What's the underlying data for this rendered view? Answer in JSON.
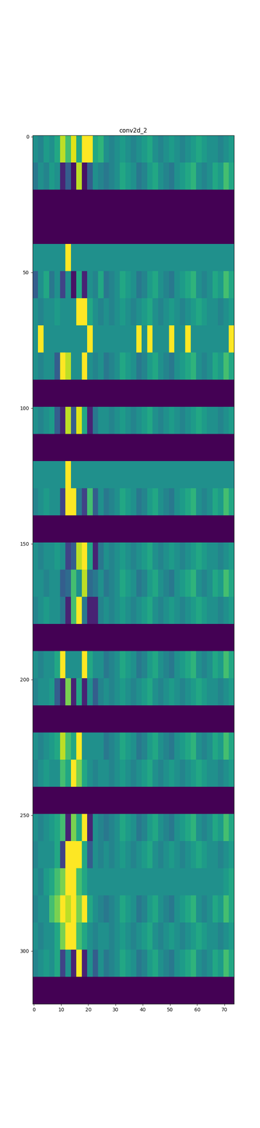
{
  "chart_data": {
    "type": "heatmap",
    "title": "conv2d_2",
    "color": "viridis",
    "xlim": [
      -0.5,
      73.5
    ],
    "ylim": [
      319.5,
      -0.5
    ],
    "xticks": [
      0,
      10,
      20,
      30,
      40,
      50,
      60,
      70
    ],
    "yticks": [
      0,
      50,
      100,
      150,
      200,
      250,
      300
    ],
    "color_range": [
      0,
      1
    ],
    "cells": [
      [
        0.5,
        0.45,
        0.55,
        0.5,
        0.6,
        0.9,
        0.7,
        0.95,
        0.6,
        1.0,
        1.0,
        0.6,
        0.65,
        0.5,
        0.45,
        0.5,
        0.55,
        0.5,
        0.45,
        0.5,
        0.55,
        0.6,
        0.5,
        0.45,
        0.5,
        0.55,
        0.5,
        0.45,
        0.5,
        0.55,
        0.6,
        0.55,
        0.5,
        0.5,
        0.45,
        0.5,
        0.55
      ],
      [
        0.4,
        0.5,
        0.45,
        0.55,
        0.5,
        0.1,
        0.3,
        0.05,
        0.9,
        0.05,
        0.3,
        0.5,
        0.45,
        0.4,
        0.45,
        0.5,
        0.6,
        0.55,
        0.5,
        0.4,
        0.45,
        0.55,
        0.6,
        0.5,
        0.45,
        0.4,
        0.5,
        0.55,
        0.6,
        0.65,
        0.5,
        0.45,
        0.5,
        0.6,
        0.55,
        0.7,
        0.6
      ],
      [
        0,
        0,
        0,
        0,
        0,
        0,
        0,
        0,
        0,
        0,
        0,
        0,
        0,
        0,
        0,
        0,
        0,
        0,
        0,
        0,
        0,
        0,
        0,
        0,
        0,
        0,
        0,
        0,
        0,
        0,
        0,
        0,
        0,
        0,
        0,
        0,
        0
      ],
      [
        0,
        0,
        0,
        0,
        0,
        0,
        0,
        0,
        0,
        0,
        0,
        0,
        0,
        0,
        0,
        0,
        0,
        0,
        0,
        0,
        0,
        0,
        0,
        0,
        0,
        0,
        0,
        0,
        0,
        0,
        0,
        0,
        0,
        0,
        0,
        0,
        0
      ],
      [
        0.5,
        0.5,
        0.5,
        0.5,
        0.5,
        0.5,
        1.0,
        0.5,
        0.5,
        0.5,
        0.5,
        0.5,
        0.5,
        0.5,
        0.5,
        0.5,
        0.5,
        0.5,
        0.5,
        0.5,
        0.5,
        0.5,
        0.5,
        0.5,
        0.5,
        0.5,
        0.5,
        0.5,
        0.5,
        0.5,
        0.5,
        0.5,
        0.5,
        0.5,
        0.5,
        0.5,
        0.5
      ],
      [
        0.3,
        0.5,
        0.6,
        0.4,
        0.5,
        0.2,
        0.5,
        0.05,
        0.6,
        0.1,
        0.5,
        0.45,
        0.6,
        0.4,
        0.45,
        0.5,
        0.6,
        0.55,
        0.5,
        0.4,
        0.45,
        0.55,
        0.6,
        0.5,
        0.45,
        0.4,
        0.5,
        0.55,
        0.6,
        0.65,
        0.5,
        0.45,
        0.5,
        0.6,
        0.55,
        0.7,
        0.6
      ],
      [
        0.5,
        0.45,
        0.5,
        0.5,
        0.55,
        0.5,
        0.5,
        0.5,
        1.0,
        1.0,
        0.6,
        0.5,
        0.45,
        0.5,
        0.45,
        0.5,
        0.55,
        0.5,
        0.45,
        0.5,
        0.55,
        0.6,
        0.5,
        0.45,
        0.5,
        0.55,
        0.5,
        0.45,
        0.5,
        0.55,
        0.6,
        0.55,
        0.5,
        0.5,
        0.45,
        0.5,
        0.55
      ],
      [
        0.5,
        1.0,
        0.5,
        0.5,
        0.5,
        0.5,
        0.5,
        0.5,
        0.5,
        0.5,
        1.0,
        0.5,
        0.5,
        0.5,
        0.5,
        0.5,
        0.5,
        0.5,
        0.5,
        1.0,
        0.5,
        1.0,
        0.5,
        0.5,
        0.5,
        1.0,
        0.5,
        0.5,
        1.0,
        0.5,
        0.5,
        0.5,
        0.5,
        0.5,
        0.5,
        0.5,
        1.0
      ],
      [
        0.5,
        0.45,
        0.5,
        0.5,
        0.3,
        1.0,
        0.9,
        0.5,
        0.5,
        1.0,
        0.5,
        0.45,
        0.5,
        0.4,
        0.45,
        0.5,
        0.6,
        0.55,
        0.5,
        0.4,
        0.45,
        0.55,
        0.6,
        0.5,
        0.45,
        0.4,
        0.5,
        0.55,
        0.6,
        0.65,
        0.5,
        0.45,
        0.5,
        0.6,
        0.55,
        0.7,
        0.6
      ],
      [
        0,
        0,
        0,
        0,
        0,
        0,
        0,
        0,
        0,
        0,
        0,
        0,
        0,
        0,
        0,
        0,
        0,
        0,
        0,
        0,
        0,
        0,
        0,
        0,
        0,
        0,
        0,
        0,
        0,
        0,
        0,
        0,
        0,
        0,
        0,
        0,
        0
      ],
      [
        0.5,
        0.45,
        0.5,
        0.55,
        0.3,
        0.1,
        0.9,
        0.3,
        0.95,
        0.6,
        0.1,
        0.4,
        0.5,
        0.5,
        0.45,
        0.5,
        0.55,
        0.5,
        0.45,
        0.5,
        0.55,
        0.6,
        0.5,
        0.45,
        0.5,
        0.55,
        0.5,
        0.45,
        0.5,
        0.55,
        0.6,
        0.55,
        0.5,
        0.5,
        0.45,
        0.5,
        0.55
      ],
      [
        0,
        0,
        0,
        0,
        0,
        0,
        0,
        0,
        0,
        0,
        0,
        0,
        0,
        0,
        0,
        0,
        0,
        0,
        0,
        0,
        0,
        0,
        0,
        0,
        0,
        0,
        0,
        0,
        0,
        0,
        0,
        0,
        0,
        0,
        0,
        0,
        0
      ],
      [
        0.5,
        0.5,
        0.5,
        0.5,
        0.5,
        0.5,
        1.0,
        0.5,
        0.5,
        0.5,
        0.5,
        0.5,
        0.5,
        0.5,
        0.5,
        0.5,
        0.5,
        0.5,
        0.5,
        0.5,
        0.5,
        0.5,
        0.5,
        0.5,
        0.5,
        0.5,
        0.5,
        0.5,
        0.5,
        0.5,
        0.5,
        0.5,
        0.5,
        0.5,
        0.5,
        0.5,
        0.5
      ],
      [
        0.45,
        0.5,
        0.55,
        0.5,
        0.5,
        0.2,
        1.0,
        1.0,
        0.4,
        0.2,
        0.7,
        0.3,
        0.5,
        0.4,
        0.45,
        0.5,
        0.6,
        0.55,
        0.5,
        0.4,
        0.45,
        0.55,
        0.6,
        0.5,
        0.45,
        0.4,
        0.5,
        0.55,
        0.6,
        0.65,
        0.5,
        0.45,
        0.5,
        0.6,
        0.55,
        0.7,
        0.6
      ],
      [
        0,
        0,
        0,
        0,
        0,
        0,
        0,
        0,
        0,
        0,
        0,
        0,
        0,
        0,
        0,
        0,
        0,
        0,
        0,
        0,
        0,
        0,
        0,
        0,
        0,
        0,
        0,
        0,
        0,
        0,
        0,
        0,
        0,
        0,
        0,
        0,
        0
      ],
      [
        0.5,
        0.45,
        0.5,
        0.5,
        0.55,
        0.5,
        0.2,
        0.3,
        0.9,
        1.0,
        0.6,
        0.1,
        0.4,
        0.5,
        0.45,
        0.5,
        0.55,
        0.5,
        0.45,
        0.5,
        0.55,
        0.6,
        0.5,
        0.45,
        0.5,
        0.55,
        0.5,
        0.45,
        0.5,
        0.55,
        0.6,
        0.55,
        0.5,
        0.5,
        0.45,
        0.5,
        0.55
      ],
      [
        0.5,
        0.5,
        0.45,
        0.5,
        0.5,
        0.3,
        0.35,
        0.7,
        0.5,
        0.9,
        0.35,
        0.4,
        0.5,
        0.4,
        0.45,
        0.5,
        0.6,
        0.55,
        0.5,
        0.4,
        0.45,
        0.55,
        0.6,
        0.5,
        0.45,
        0.4,
        0.5,
        0.55,
        0.6,
        0.65,
        0.5,
        0.45,
        0.5,
        0.6,
        0.55,
        0.7,
        0.6
      ],
      [
        0.45,
        0.5,
        0.55,
        0.5,
        0.5,
        0.4,
        0.1,
        0.7,
        1.0,
        0.4,
        0.1,
        0.1,
        0.45,
        0.5,
        0.45,
        0.5,
        0.55,
        0.5,
        0.45,
        0.5,
        0.55,
        0.6,
        0.5,
        0.45,
        0.5,
        0.55,
        0.5,
        0.45,
        0.5,
        0.55,
        0.6,
        0.55,
        0.5,
        0.5,
        0.45,
        0.5,
        0.55
      ],
      [
        0,
        0,
        0,
        0,
        0,
        0,
        0,
        0,
        0,
        0,
        0,
        0,
        0,
        0,
        0,
        0,
        0,
        0,
        0,
        0,
        0,
        0,
        0,
        0,
        0,
        0,
        0,
        0,
        0,
        0,
        0,
        0,
        0,
        0,
        0,
        0,
        0
      ],
      [
        0.5,
        0.45,
        0.5,
        0.5,
        0.6,
        1.0,
        0.5,
        0.5,
        0.5,
        1.0,
        0.6,
        0.5,
        0.5,
        0.4,
        0.45,
        0.5,
        0.6,
        0.55,
        0.5,
        0.4,
        0.45,
        0.55,
        0.6,
        0.5,
        0.45,
        0.4,
        0.5,
        0.55,
        0.6,
        0.65,
        0.5,
        0.45,
        0.5,
        0.6,
        0.55,
        0.7,
        0.6
      ],
      [
        0.45,
        0.5,
        0.5,
        0.55,
        0.3,
        0.1,
        0.8,
        0.1,
        0.6,
        0.1,
        0.5,
        0.3,
        0.45,
        0.5,
        0.45,
        0.5,
        0.55,
        0.5,
        0.45,
        0.5,
        0.55,
        0.6,
        0.5,
        0.45,
        0.5,
        0.55,
        0.5,
        0.45,
        0.5,
        0.55,
        0.6,
        0.55,
        0.5,
        0.5,
        0.45,
        0.5,
        0.55
      ],
      [
        0,
        0,
        0,
        0,
        0,
        0,
        0,
        0,
        0,
        0,
        0,
        0,
        0,
        0,
        0,
        0,
        0,
        0,
        0,
        0,
        0,
        0,
        0,
        0,
        0,
        0,
        0,
        0,
        0,
        0,
        0,
        0,
        0,
        0,
        0,
        0,
        0
      ],
      [
        0.5,
        0.45,
        0.5,
        0.55,
        0.6,
        0.9,
        0.7,
        0.6,
        1.0,
        0.5,
        0.5,
        0.5,
        0.5,
        0.4,
        0.45,
        0.5,
        0.6,
        0.55,
        0.5,
        0.4,
        0.45,
        0.55,
        0.6,
        0.5,
        0.45,
        0.4,
        0.5,
        0.55,
        0.6,
        0.65,
        0.5,
        0.45,
        0.5,
        0.6,
        0.55,
        0.7,
        0.6
      ],
      [
        0.45,
        0.5,
        0.55,
        0.5,
        0.5,
        0.7,
        0.6,
        1.0,
        0.8,
        0.6,
        0.5,
        0.45,
        0.5,
        0.5,
        0.45,
        0.5,
        0.55,
        0.5,
        0.45,
        0.5,
        0.55,
        0.6,
        0.5,
        0.45,
        0.5,
        0.55,
        0.5,
        0.45,
        0.5,
        0.55,
        0.6,
        0.55,
        0.5,
        0.5,
        0.45,
        0.5,
        0.55
      ],
      [
        0,
        0,
        0,
        0,
        0,
        0,
        0,
        0,
        0,
        0,
        0,
        0,
        0,
        0,
        0,
        0,
        0,
        0,
        0,
        0,
        0,
        0,
        0,
        0,
        0,
        0,
        0,
        0,
        0,
        0,
        0,
        0,
        0,
        0,
        0,
        0,
        0
      ],
      [
        0.5,
        0.45,
        0.5,
        0.55,
        0.6,
        0.7,
        0.1,
        0.8,
        0.6,
        1.0,
        0.1,
        0.5,
        0.45,
        0.4,
        0.45,
        0.5,
        0.6,
        0.55,
        0.5,
        0.4,
        0.45,
        0.55,
        0.6,
        0.5,
        0.45,
        0.4,
        0.5,
        0.55,
        0.6,
        0.65,
        0.5,
        0.45,
        0.5,
        0.6,
        0.55,
        0.7,
        0.6
      ],
      [
        0.45,
        0.5,
        0.5,
        0.5,
        0.6,
        0.2,
        1.0,
        1.0,
        1.0,
        0.6,
        0.3,
        0.5,
        0.45,
        0.5,
        0.45,
        0.5,
        0.55,
        0.5,
        0.45,
        0.5,
        0.55,
        0.6,
        0.5,
        0.45,
        0.5,
        0.55,
        0.5,
        0.45,
        0.5,
        0.55,
        0.6,
        0.55,
        0.5,
        0.5,
        0.45,
        0.5,
        0.55
      ],
      [
        0.5,
        0.45,
        0.55,
        0.6,
        0.7,
        0.8,
        1.0,
        1.0,
        0.7,
        0.6,
        0.5,
        0.5,
        0.5,
        0.5,
        0.5,
        0.5,
        0.5,
        0.5,
        0.5,
        0.5,
        0.5,
        0.5,
        0.5,
        0.5,
        0.5,
        0.5,
        0.5,
        0.5,
        0.5,
        0.5,
        0.5,
        0.5,
        0.5,
        0.5,
        0.5,
        0.55,
        0.6
      ],
      [
        0.45,
        0.5,
        0.5,
        0.7,
        0.8,
        1.0,
        0.9,
        1.0,
        0.8,
        1.0,
        0.6,
        0.5,
        0.45,
        0.4,
        0.45,
        0.5,
        0.6,
        0.55,
        0.5,
        0.4,
        0.45,
        0.55,
        0.6,
        0.5,
        0.45,
        0.4,
        0.5,
        0.55,
        0.6,
        0.65,
        0.5,
        0.45,
        0.5,
        0.6,
        0.55,
        0.7,
        0.6
      ],
      [
        0.5,
        0.45,
        0.5,
        0.5,
        0.6,
        0.8,
        1.0,
        1.0,
        0.7,
        0.6,
        0.5,
        0.45,
        0.5,
        0.5,
        0.45,
        0.5,
        0.55,
        0.5,
        0.45,
        0.5,
        0.55,
        0.6,
        0.5,
        0.45,
        0.5,
        0.55,
        0.5,
        0.45,
        0.5,
        0.55,
        0.6,
        0.55,
        0.5,
        0.5,
        0.45,
        0.5,
        0.55
      ],
      [
        0.45,
        0.5,
        0.55,
        0.5,
        0.6,
        0.2,
        0.5,
        0.1,
        1.0,
        0.1,
        0.5,
        0.3,
        0.5,
        0.4,
        0.45,
        0.5,
        0.6,
        0.55,
        0.5,
        0.4,
        0.45,
        0.55,
        0.6,
        0.5,
        0.45,
        0.4,
        0.5,
        0.55,
        0.6,
        0.65,
        0.5,
        0.45,
        0.5,
        0.6,
        0.55,
        0.7,
        0.6
      ],
      [
        0,
        0,
        0,
        0,
        0,
        0,
        0,
        0,
        0,
        0,
        0,
        0,
        0,
        0,
        0,
        0,
        0,
        0,
        0,
        0,
        0,
        0,
        0,
        0,
        0,
        0,
        0,
        0,
        0,
        0,
        0,
        0,
        0,
        0,
        0,
        0,
        0
      ]
    ]
  }
}
